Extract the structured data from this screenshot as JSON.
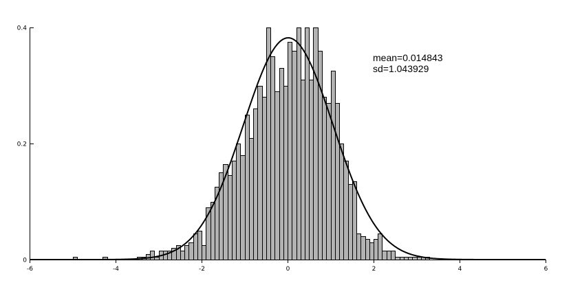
{
  "chart_data": {
    "type": "bar",
    "title": "",
    "xlabel": "",
    "ylabel": "",
    "xlim": [
      -6,
      6
    ],
    "ylim": [
      0,
      0.4
    ],
    "x_ticks": [
      "-6",
      "-4",
      "-2",
      "0",
      "2",
      "4",
      "6"
    ],
    "y_ticks": [
      "0",
      "0.2",
      "0.4"
    ],
    "grid": false,
    "annotations": [
      "mean=0.014843",
      "sd=1.043929"
    ],
    "fit": {
      "type": "normal",
      "mean": 0.014843,
      "sd": 1.043929
    },
    "bin_width": 0.1,
    "bins_x": [
      -5.0,
      -4.3,
      -3.5,
      -3.4,
      -3.3,
      -3.2,
      -3.1,
      -3.0,
      -2.9,
      -2.8,
      -2.7,
      -2.6,
      -2.5,
      -2.4,
      -2.3,
      -2.2,
      -2.1,
      -2.0,
      -1.9,
      -1.8,
      -1.7,
      -1.6,
      -1.5,
      -1.4,
      -1.3,
      -1.2,
      -1.1,
      -1.0,
      -0.9,
      -0.8,
      -0.7,
      -0.6,
      -0.5,
      -0.4,
      -0.3,
      -0.2,
      -0.1,
      0.0,
      0.1,
      0.2,
      0.3,
      0.4,
      0.5,
      0.6,
      0.7,
      0.8,
      0.9,
      1.0,
      1.1,
      1.2,
      1.3,
      1.4,
      1.5,
      1.6,
      1.7,
      1.8,
      1.9,
      2.0,
      2.1,
      2.2,
      2.3,
      2.4,
      2.5,
      2.6,
      2.7,
      2.8,
      2.9,
      3.0,
      3.1,
      3.2
    ],
    "values": [
      0.005,
      0.005,
      0.005,
      0.005,
      0.01,
      0.015,
      0.005,
      0.015,
      0.015,
      0.015,
      0.02,
      0.025,
      0.015,
      0.025,
      0.03,
      0.045,
      0.05,
      0.025,
      0.09,
      0.1,
      0.125,
      0.15,
      0.165,
      0.145,
      0.17,
      0.2,
      0.18,
      0.25,
      0.21,
      0.26,
      0.3,
      0.28,
      0.4,
      0.35,
      0.29,
      0.33,
      0.3,
      0.375,
      0.36,
      0.4,
      0.31,
      0.4,
      0.31,
      0.4,
      0.36,
      0.28,
      0.27,
      0.325,
      0.27,
      0.2,
      0.17,
      0.13,
      0.135,
      0.045,
      0.04,
      0.035,
      0.03,
      0.035,
      0.045,
      0.015,
      0.015,
      0.015,
      0.005,
      0.005,
      0.005,
      0.005,
      0.005,
      0.005,
      0.005,
      0.005
    ]
  }
}
